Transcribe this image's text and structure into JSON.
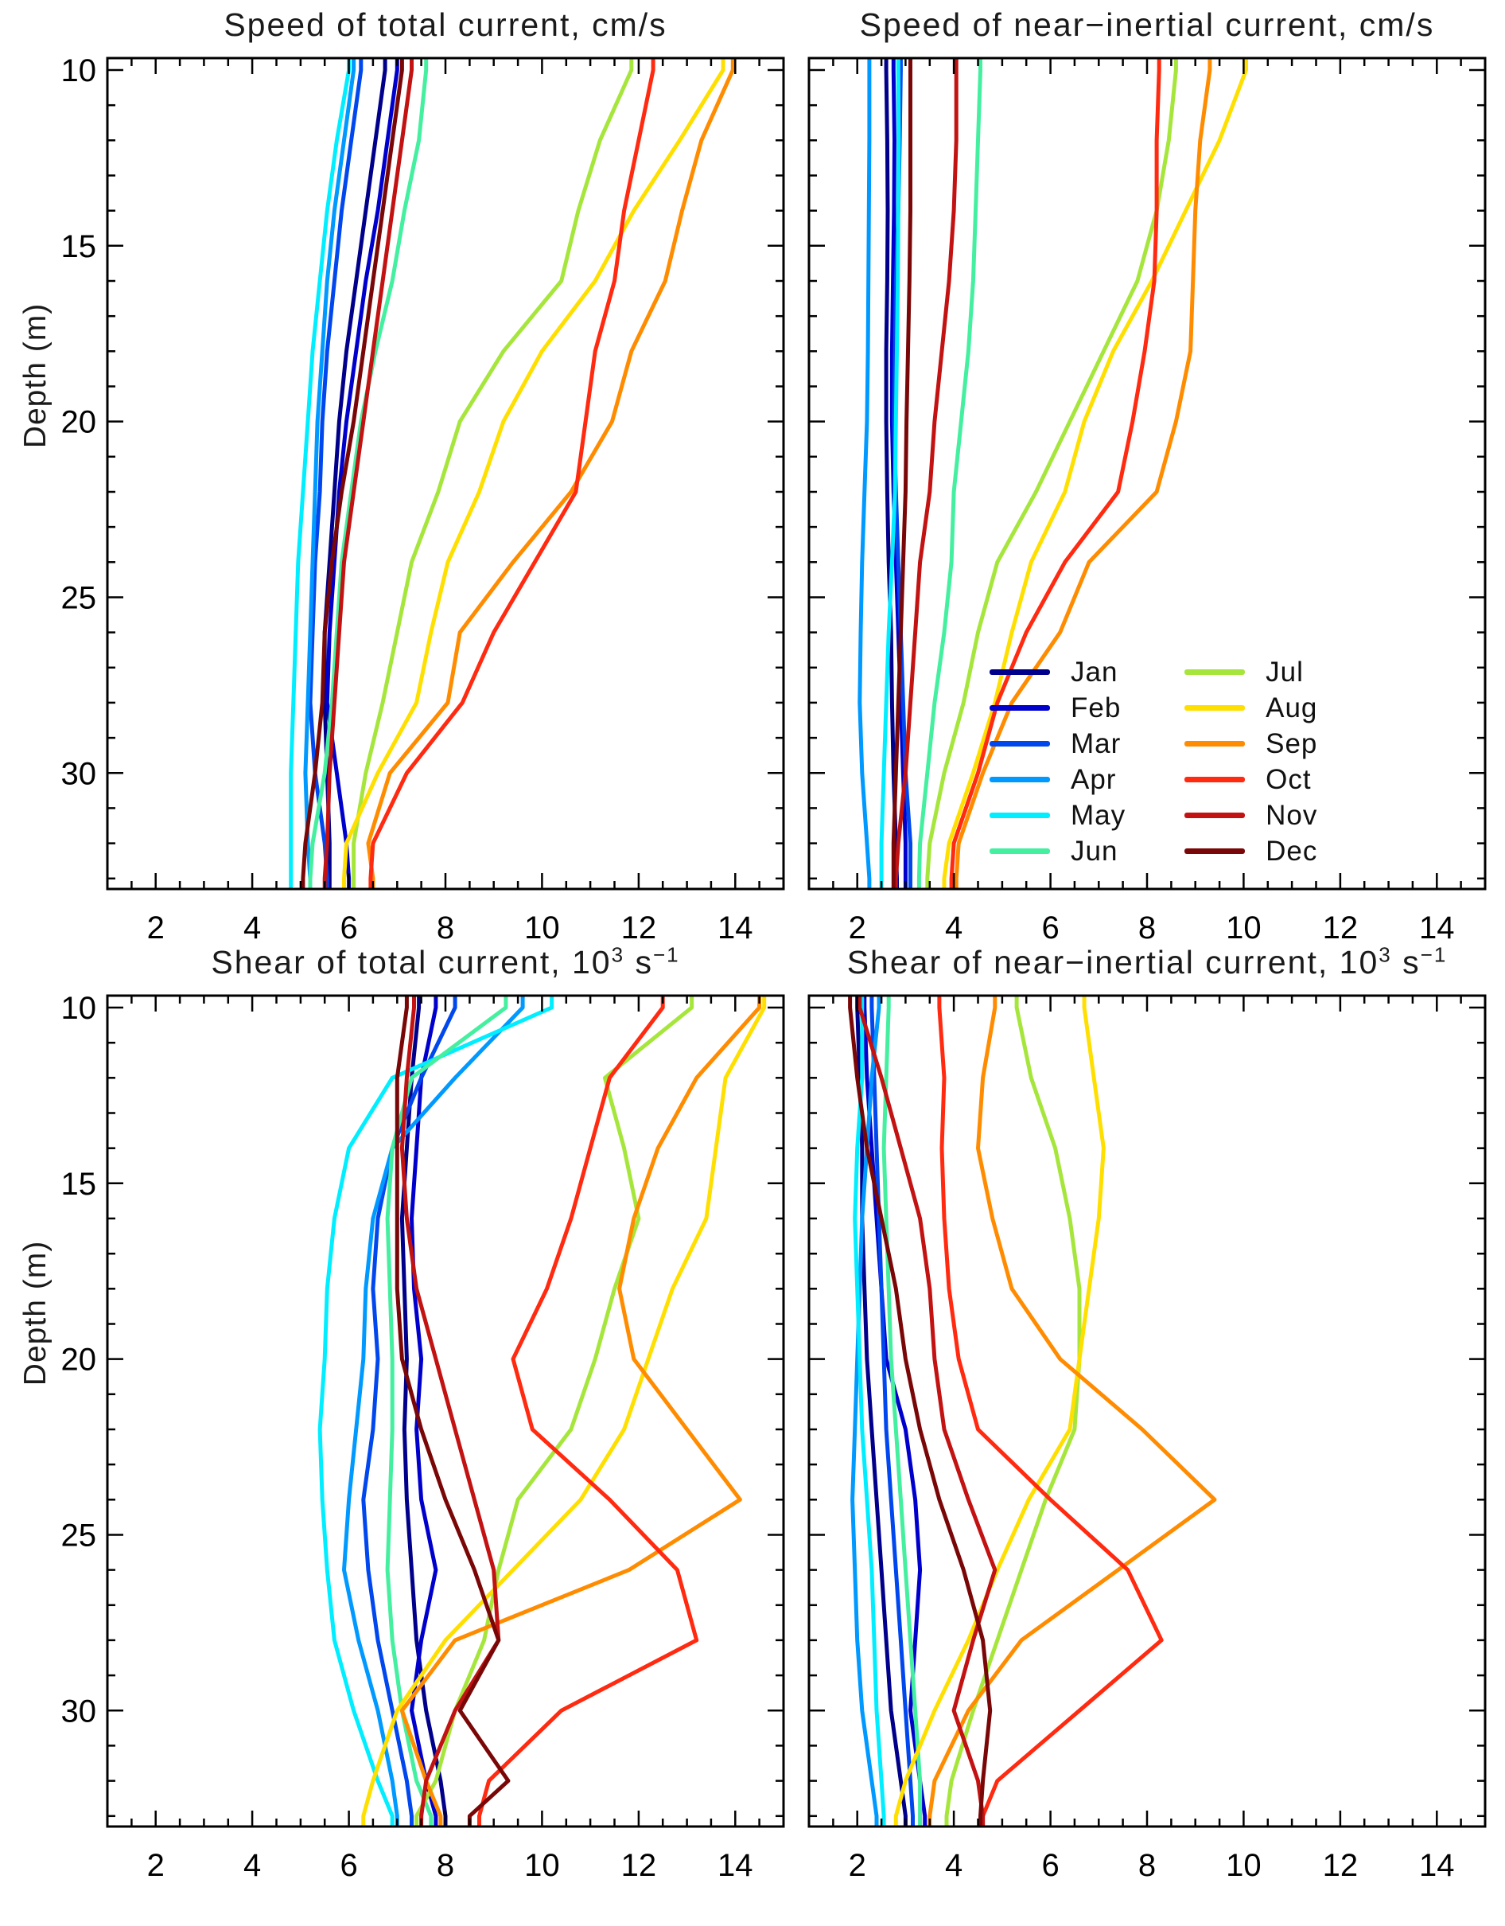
{
  "ylabel": "Depth (m)",
  "months": [
    "Jan",
    "Feb",
    "Mar",
    "Apr",
    "May",
    "Jun",
    "Jul",
    "Aug",
    "Sep",
    "Oct",
    "Nov",
    "Dec"
  ],
  "month_colors": {
    "Jan": "#00008B",
    "Feb": "#0000CC",
    "Mar": "#0047EE",
    "Apr": "#0099FF",
    "May": "#00EEFF",
    "Jun": "#44EFA0",
    "Jul": "#A6E63C",
    "Aug": "#FFDF00",
    "Sep": "#FF8C00",
    "Oct": "#FF2A10",
    "Nov": "#C21212",
    "Dec": "#7A0707"
  },
  "legend": {
    "col1": [
      "Jan",
      "Feb",
      "Mar",
      "Apr",
      "May",
      "Jun"
    ],
    "col2": [
      "Jul",
      "Aug",
      "Sep",
      "Oct",
      "Nov",
      "Dec"
    ]
  },
  "chart_data": [
    {
      "type": "line",
      "title_parts": {
        "pre": "Speed of total current, cm/s",
        "sup1": "",
        "mid": "",
        "sup2": ""
      },
      "ylabel": "Depth (m)",
      "xlim": [
        1,
        15
      ],
      "ylim": [
        9.66,
        33.3
      ],
      "xticks": [
        2,
        4,
        6,
        8,
        10,
        12,
        14
      ],
      "yticks": [
        10,
        15,
        20,
        25,
        30
      ],
      "x_minor_step": 0.5,
      "y_minor_step": 1,
      "show_ylabels": true,
      "grid": false,
      "legend_position": "none",
      "depths": [
        10,
        12,
        14,
        16,
        18,
        20,
        22,
        24,
        26,
        28,
        30,
        32,
        33
      ],
      "series": [
        {
          "name": "Jan",
          "values": [
            6.75,
            6.55,
            6.35,
            6.15,
            5.95,
            5.8,
            5.7,
            5.6,
            5.5,
            5.5,
            5.55,
            5.6,
            5.6
          ]
        },
        {
          "name": "Feb",
          "values": [
            7.0,
            6.8,
            6.6,
            6.35,
            6.15,
            5.95,
            5.8,
            5.7,
            5.6,
            5.55,
            5.75,
            5.95,
            6.0
          ]
        },
        {
          "name": "Mar",
          "values": [
            6.25,
            6.05,
            5.85,
            5.7,
            5.55,
            5.45,
            5.4,
            5.3,
            5.25,
            5.2,
            5.3,
            5.5,
            5.55
          ]
        },
        {
          "name": "Apr",
          "values": [
            6.1,
            5.9,
            5.7,
            5.55,
            5.45,
            5.35,
            5.3,
            5.25,
            5.2,
            5.15,
            5.1,
            5.15,
            5.2
          ]
        },
        {
          "name": "May",
          "values": [
            6.0,
            5.75,
            5.55,
            5.4,
            5.25,
            5.15,
            5.05,
            4.95,
            4.9,
            4.85,
            4.8,
            4.8,
            4.8
          ]
        },
        {
          "name": "Jun",
          "values": [
            7.6,
            7.45,
            7.15,
            6.9,
            6.55,
            6.25,
            6.05,
            5.85,
            5.75,
            5.65,
            5.5,
            5.25,
            5.2
          ]
        },
        {
          "name": "Jul",
          "values": [
            11.85,
            11.2,
            10.75,
            10.4,
            9.2,
            8.3,
            7.85,
            7.3,
            7.0,
            6.7,
            6.35,
            6.1,
            6.1
          ]
        },
        {
          "name": "Aug",
          "values": [
            13.75,
            12.85,
            11.9,
            11.1,
            10.0,
            9.2,
            8.7,
            8.05,
            7.7,
            7.4,
            6.6,
            5.95,
            5.9
          ]
        },
        {
          "name": "Sep",
          "values": [
            13.95,
            13.3,
            12.9,
            12.55,
            11.85,
            11.45,
            10.6,
            9.4,
            8.3,
            8.05,
            6.85,
            6.4,
            6.5
          ]
        },
        {
          "name": "Oct",
          "values": [
            12.3,
            12.0,
            11.7,
            11.5,
            11.1,
            10.9,
            10.7,
            9.85,
            9.0,
            8.35,
            7.2,
            6.5,
            6.45
          ]
        },
        {
          "name": "Nov",
          "values": [
            7.3,
            7.1,
            6.9,
            6.7,
            6.5,
            6.3,
            6.1,
            5.9,
            5.8,
            5.7,
            5.6,
            5.55,
            5.5
          ]
        },
        {
          "name": "Dec",
          "values": [
            7.1,
            6.9,
            6.7,
            6.5,
            6.3,
            6.1,
            5.85,
            5.65,
            5.5,
            5.45,
            5.3,
            5.1,
            5.05
          ]
        }
      ]
    },
    {
      "type": "line",
      "title_parts": {
        "pre": "Speed of near−inertial current, cm/s",
        "sup1": "",
        "mid": "",
        "sup2": ""
      },
      "ylabel": "Depth (m)",
      "xlim": [
        1,
        15
      ],
      "ylim": [
        9.66,
        33.3
      ],
      "xticks": [
        2,
        4,
        6,
        8,
        10,
        12,
        14
      ],
      "yticks": [
        10,
        15,
        20,
        25,
        30
      ],
      "x_minor_step": 0.5,
      "y_minor_step": 1,
      "show_ylabels": false,
      "grid": false,
      "legend_position": "inside-lower-right",
      "depths": [
        10,
        12,
        14,
        16,
        18,
        20,
        22,
        24,
        26,
        28,
        30,
        32,
        33
      ],
      "series": [
        {
          "name": "Jan",
          "values": [
            2.6,
            2.62,
            2.63,
            2.62,
            2.6,
            2.6,
            2.62,
            2.65,
            2.7,
            2.72,
            2.75,
            2.8,
            2.82
          ]
        },
        {
          "name": "Feb",
          "values": [
            2.75,
            2.77,
            2.76,
            2.74,
            2.72,
            2.72,
            2.75,
            2.8,
            2.85,
            2.9,
            2.95,
            3.0,
            3.0
          ]
        },
        {
          "name": "Mar",
          "values": [
            2.9,
            2.88,
            2.85,
            2.8,
            2.78,
            2.76,
            2.8,
            2.85,
            2.9,
            2.95,
            3.0,
            3.1,
            3.1
          ]
        },
        {
          "name": "Apr",
          "values": [
            2.25,
            2.25,
            2.24,
            2.23,
            2.22,
            2.2,
            2.15,
            2.1,
            2.07,
            2.05,
            2.1,
            2.2,
            2.25
          ]
        },
        {
          "name": "May",
          "values": [
            2.85,
            2.86,
            2.85,
            2.84,
            2.82,
            2.8,
            2.78,
            2.72,
            2.65,
            2.6,
            2.55,
            2.5,
            2.5
          ]
        },
        {
          "name": "Jun",
          "values": [
            4.55,
            4.5,
            4.45,
            4.4,
            4.3,
            4.15,
            4.0,
            3.95,
            3.8,
            3.6,
            3.45,
            3.3,
            3.28
          ]
        },
        {
          "name": "Jul",
          "values": [
            8.6,
            8.45,
            8.2,
            7.8,
            7.1,
            6.4,
            5.7,
            4.9,
            4.5,
            4.2,
            3.8,
            3.5,
            3.45
          ]
        },
        {
          "name": "Aug",
          "values": [
            10.05,
            9.5,
            8.8,
            8.1,
            7.3,
            6.7,
            6.3,
            5.6,
            5.2,
            4.85,
            4.4,
            3.9,
            3.8
          ]
        },
        {
          "name": "Sep",
          "values": [
            9.3,
            9.1,
            9.0,
            8.95,
            8.9,
            8.6,
            8.2,
            6.8,
            6.2,
            5.2,
            4.6,
            4.1,
            4.05
          ]
        },
        {
          "name": "Oct",
          "values": [
            8.25,
            8.2,
            8.2,
            8.15,
            7.95,
            7.7,
            7.4,
            6.3,
            5.5,
            4.9,
            4.5,
            4.0,
            3.95
          ]
        },
        {
          "name": "Nov",
          "values": [
            4.05,
            4.05,
            4.0,
            3.9,
            3.75,
            3.6,
            3.5,
            3.3,
            3.2,
            3.1,
            3.0,
            2.85,
            2.8
          ]
        },
        {
          "name": "Dec",
          "values": [
            3.1,
            3.1,
            3.1,
            3.08,
            3.05,
            3.02,
            3.0,
            2.95,
            2.9,
            2.85,
            2.8,
            2.75,
            2.75
          ]
        }
      ]
    },
    {
      "type": "line",
      "title_parts": {
        "pre": "Shear of total current, 10",
        "sup1": "3",
        "mid": " s",
        "sup2": "−1"
      },
      "ylabel": "Depth (m)",
      "xlim": [
        1,
        15
      ],
      "ylim": [
        9.66,
        33.3
      ],
      "xticks": [
        2,
        4,
        6,
        8,
        10,
        12,
        14
      ],
      "yticks": [
        10,
        15,
        20,
        25,
        30
      ],
      "x_minor_step": 0.5,
      "y_minor_step": 1,
      "show_ylabels": true,
      "grid": false,
      "legend_position": "none",
      "depths": [
        10,
        12,
        14,
        16,
        18,
        20,
        22,
        24,
        26,
        28,
        30,
        32,
        33
      ],
      "series": [
        {
          "name": "Jan",
          "values": [
            7.45,
            7.3,
            7.2,
            7.1,
            7.15,
            7.2,
            7.15,
            7.2,
            7.3,
            7.4,
            7.6,
            7.9,
            8.0
          ]
        },
        {
          "name": "Feb",
          "values": [
            7.8,
            7.5,
            7.4,
            7.3,
            7.35,
            7.5,
            7.4,
            7.5,
            7.8,
            7.5,
            7.3,
            7.6,
            7.8
          ]
        },
        {
          "name": "Mar",
          "values": [
            8.2,
            7.5,
            6.9,
            6.6,
            6.5,
            6.6,
            6.5,
            6.3,
            6.4,
            6.6,
            6.9,
            7.2,
            7.3
          ]
        },
        {
          "name": "Apr",
          "values": [
            9.6,
            8.2,
            6.9,
            6.5,
            6.35,
            6.3,
            6.15,
            6.0,
            5.9,
            6.2,
            6.6,
            6.9,
            7.0
          ]
        },
        {
          "name": "May",
          "values": [
            10.2,
            6.9,
            6.0,
            5.7,
            5.55,
            5.5,
            5.4,
            5.45,
            5.55,
            5.7,
            6.1,
            6.6,
            6.9
          ]
        },
        {
          "name": "Jun",
          "values": [
            9.25,
            7.3,
            6.9,
            6.8,
            6.85,
            6.9,
            6.9,
            6.85,
            6.8,
            6.9,
            7.1,
            7.4,
            7.7
          ]
        },
        {
          "name": "Jul",
          "values": [
            13.1,
            11.3,
            11.7,
            12.0,
            11.5,
            11.1,
            10.6,
            9.5,
            9.1,
            8.8,
            8.2,
            7.8,
            7.4
          ]
        },
        {
          "name": "Aug",
          "values": [
            14.6,
            13.8,
            13.6,
            13.4,
            12.7,
            12.2,
            11.7,
            10.8,
            9.4,
            8.0,
            7.0,
            6.5,
            6.3
          ]
        },
        {
          "name": "Sep",
          "values": [
            14.5,
            13.2,
            12.4,
            11.9,
            11.6,
            11.9,
            13.0,
            14.1,
            11.8,
            8.2,
            7.1,
            7.6,
            7.9
          ]
        },
        {
          "name": "Oct",
          "values": [
            12.5,
            11.4,
            11.0,
            10.6,
            10.1,
            9.4,
            9.8,
            11.4,
            12.8,
            13.2,
            10.4,
            8.9,
            8.7
          ]
        },
        {
          "name": "Nov",
          "values": [
            7.35,
            7.2,
            7.1,
            7.2,
            7.4,
            7.8,
            8.2,
            8.6,
            9.0,
            9.1,
            8.2,
            7.6,
            7.5
          ]
        },
        {
          "name": "Dec",
          "values": [
            7.2,
            7.0,
            7.0,
            7.0,
            7.0,
            7.1,
            7.5,
            8.0,
            8.6,
            9.1,
            8.3,
            9.3,
            8.5
          ]
        }
      ]
    },
    {
      "type": "line",
      "title_parts": {
        "pre": "Shear of near−inertial current, 10",
        "sup1": "3",
        "mid": " s",
        "sup2": "−1"
      },
      "ylabel": "Depth (m)",
      "xlim": [
        1,
        15
      ],
      "ylim": [
        9.66,
        33.3
      ],
      "xticks": [
        2,
        4,
        6,
        8,
        10,
        12,
        14
      ],
      "yticks": [
        10,
        15,
        20,
        25,
        30
      ],
      "x_minor_step": 0.5,
      "y_minor_step": 1,
      "show_ylabels": false,
      "grid": false,
      "legend_position": "none",
      "depths": [
        10,
        12,
        14,
        16,
        18,
        20,
        22,
        24,
        26,
        28,
        30,
        32,
        33
      ],
      "series": [
        {
          "name": "Jan",
          "values": [
            2.0,
            2.05,
            2.1,
            2.1,
            2.15,
            2.2,
            2.3,
            2.4,
            2.5,
            2.6,
            2.7,
            2.9,
            3.0
          ]
        },
        {
          "name": "Feb",
          "values": [
            2.15,
            2.2,
            2.3,
            2.4,
            2.5,
            2.6,
            3.0,
            3.2,
            3.3,
            3.2,
            3.1,
            3.3,
            3.4
          ]
        },
        {
          "name": "Mar",
          "values": [
            2.3,
            2.35,
            2.4,
            2.45,
            2.5,
            2.55,
            2.6,
            2.7,
            2.8,
            2.9,
            3.0,
            3.1,
            3.15
          ]
        },
        {
          "name": "Apr",
          "values": [
            2.45,
            2.3,
            2.2,
            2.1,
            2.05,
            2.0,
            1.95,
            1.9,
            1.95,
            2.0,
            2.1,
            2.3,
            2.4
          ]
        },
        {
          "name": "May",
          "values": [
            2.1,
            2.1,
            2.0,
            1.95,
            2.0,
            2.05,
            2.1,
            2.2,
            2.3,
            2.35,
            2.4,
            2.5,
            2.55
          ]
        },
        {
          "name": "Jun",
          "values": [
            2.65,
            2.6,
            2.55,
            2.6,
            2.65,
            2.7,
            2.8,
            2.9,
            3.0,
            3.1,
            3.2,
            3.3,
            3.3
          ]
        },
        {
          "name": "Jul",
          "values": [
            5.3,
            5.6,
            6.1,
            6.4,
            6.6,
            6.6,
            6.5,
            5.9,
            5.4,
            4.9,
            4.4,
            3.95,
            3.85
          ]
        },
        {
          "name": "Aug",
          "values": [
            6.7,
            6.9,
            7.1,
            7.0,
            6.8,
            6.6,
            6.4,
            5.55,
            4.9,
            4.3,
            3.6,
            3.0,
            2.8
          ]
        },
        {
          "name": "Sep",
          "values": [
            4.85,
            4.6,
            4.5,
            4.8,
            5.2,
            6.2,
            7.9,
            9.4,
            7.4,
            5.4,
            4.3,
            3.6,
            3.5
          ]
        },
        {
          "name": "Oct",
          "values": [
            3.7,
            3.8,
            3.75,
            3.8,
            3.9,
            4.1,
            4.5,
            6.0,
            7.6,
            8.3,
            6.6,
            4.9,
            4.6
          ]
        },
        {
          "name": "Nov",
          "values": [
            2.05,
            2.5,
            2.9,
            3.3,
            3.5,
            3.6,
            3.8,
            4.3,
            4.85,
            4.4,
            4.0,
            4.5,
            4.6
          ]
        },
        {
          "name": "Dec",
          "values": [
            1.85,
            2.0,
            2.2,
            2.5,
            2.8,
            3.0,
            3.3,
            3.7,
            4.2,
            4.6,
            4.75,
            4.6,
            4.55
          ]
        }
      ]
    }
  ]
}
